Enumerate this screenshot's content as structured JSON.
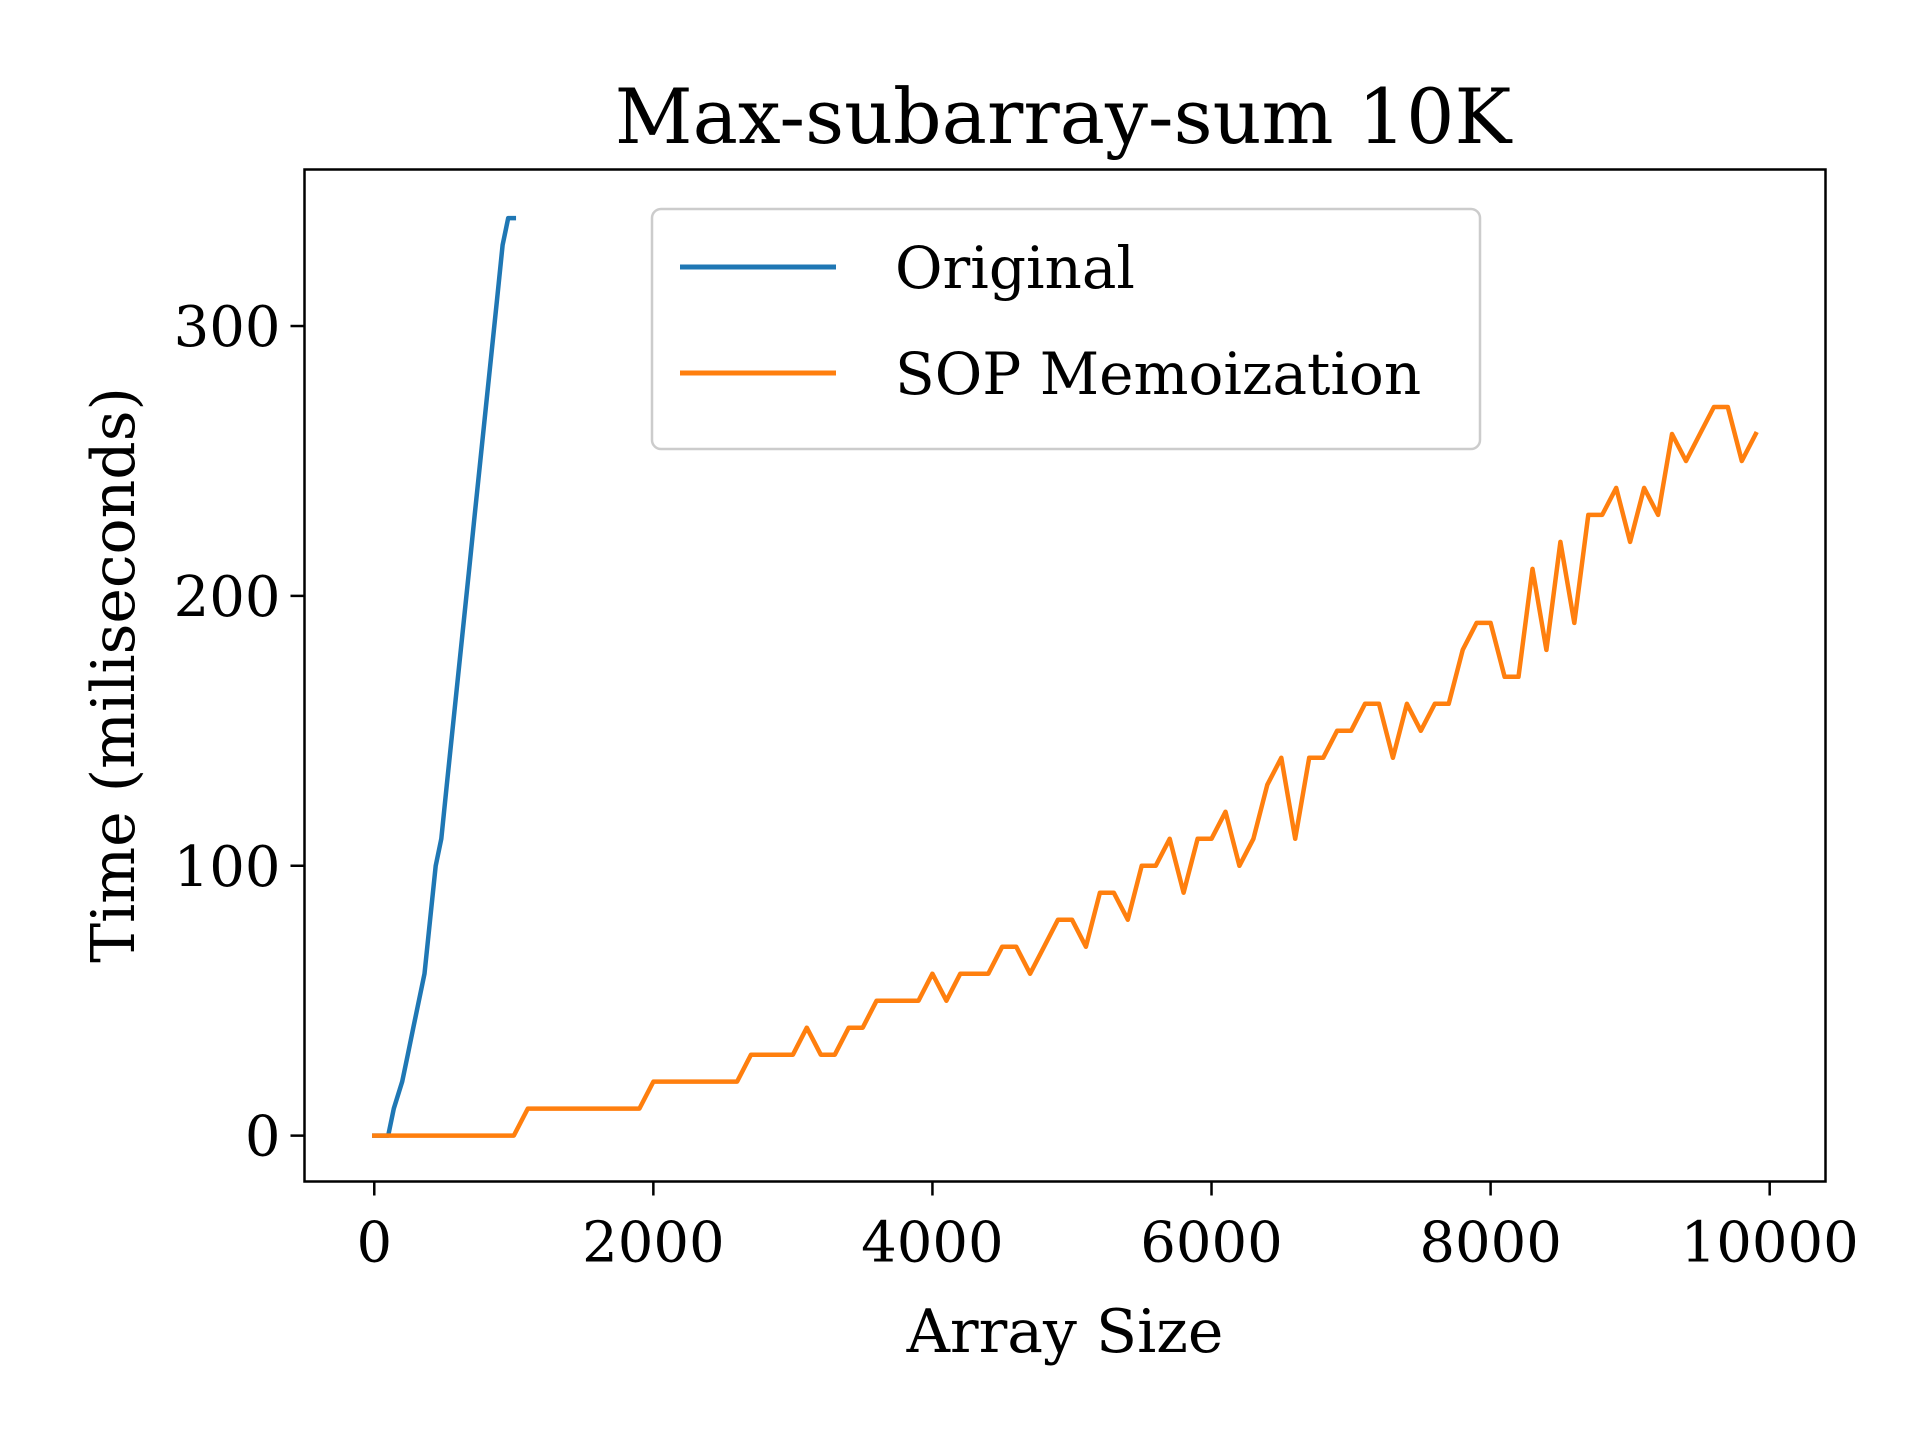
{
  "chart_data": {
    "type": "line",
    "title": "Max-subarray-sum 10K",
    "xlabel": "Array Size",
    "ylabel": "Time (miliseconds)",
    "xlim": [
      -500,
      10400
    ],
    "ylim": [
      -17,
      358
    ],
    "xticks": [
      0,
      2000,
      4000,
      6000,
      8000,
      10000
    ],
    "yticks": [
      0,
      100,
      200,
      300
    ],
    "grid": false,
    "legend_position": "upper center",
    "series": [
      {
        "name": "Original",
        "color": "#1f77b4",
        "x": [
          0,
          100,
          140,
          200,
          240,
          280,
          320,
          360,
          400,
          440,
          480,
          520,
          560,
          600,
          640,
          680,
          720,
          760,
          800,
          840,
          880,
          920,
          960,
          1000
        ],
        "y": [
          0,
          0,
          10,
          20,
          30,
          40,
          50,
          60,
          80,
          100,
          110,
          130,
          150,
          170,
          190,
          210,
          230,
          250,
          270,
          290,
          310,
          330,
          340,
          340
        ]
      },
      {
        "name": "SOP Memoization",
        "color": "#ff7f0e",
        "x": [
          0,
          100,
          200,
          300,
          400,
          500,
          600,
          700,
          800,
          900,
          1000,
          1100,
          1200,
          1300,
          1400,
          1500,
          1600,
          1700,
          1800,
          1900,
          2000,
          2100,
          2200,
          2300,
          2400,
          2500,
          2600,
          2700,
          2800,
          2900,
          3000,
          3100,
          3200,
          3300,
          3400,
          3500,
          3600,
          3700,
          3800,
          3900,
          4000,
          4100,
          4200,
          4300,
          4400,
          4500,
          4600,
          4700,
          4800,
          4900,
          5000,
          5100,
          5200,
          5300,
          5400,
          5500,
          5600,
          5700,
          5800,
          5900,
          6000,
          6100,
          6200,
          6300,
          6400,
          6500,
          6600,
          6700,
          6800,
          6900,
          7000,
          7100,
          7200,
          7300,
          7400,
          7500,
          7600,
          7700,
          7800,
          7900,
          8000,
          8100,
          8200,
          8300,
          8400,
          8500,
          8600,
          8700,
          8800,
          8900,
          9000,
          9100,
          9200,
          9300,
          9400,
          9500,
          9600,
          9700,
          9800,
          9900
        ],
        "y": [
          0,
          0,
          0,
          0,
          0,
          0,
          0,
          0,
          0,
          0,
          0,
          10,
          10,
          10,
          10,
          10,
          10,
          10,
          10,
          10,
          20,
          20,
          20,
          20,
          20,
          20,
          20,
          30,
          30,
          30,
          30,
          40,
          30,
          30,
          40,
          40,
          50,
          50,
          50,
          50,
          60,
          50,
          60,
          60,
          60,
          70,
          70,
          60,
          70,
          80,
          80,
          70,
          90,
          90,
          80,
          100,
          100,
          110,
          90,
          110,
          110,
          120,
          100,
          110,
          130,
          140,
          110,
          140,
          140,
          150,
          150,
          160,
          160,
          140,
          160,
          150,
          160,
          160,
          180,
          190,
          190,
          170,
          170,
          210,
          180,
          220,
          190,
          230,
          230,
          240,
          220,
          240,
          230,
          260,
          250,
          260,
          270,
          270,
          250,
          260
        ]
      }
    ]
  }
}
